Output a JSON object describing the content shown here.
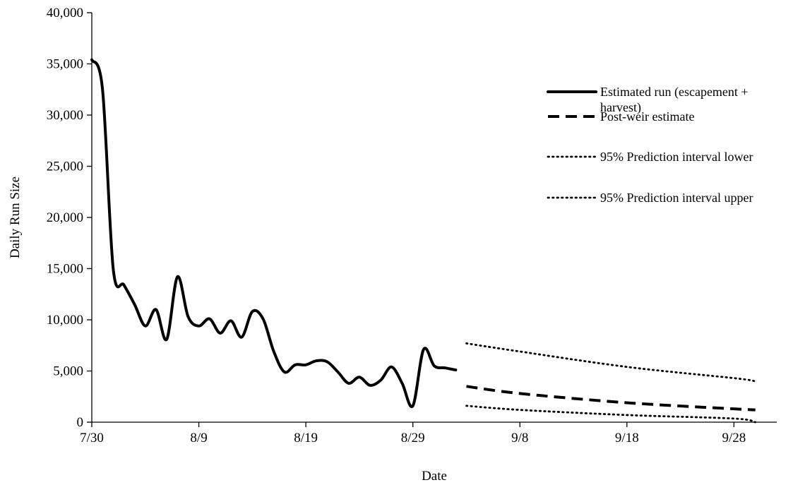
{
  "chart_data": {
    "type": "line",
    "title": "",
    "xlabel": "Date",
    "ylabel": "Daily Run Size",
    "x_axis": {
      "ticks": [
        "7/30",
        "8/9",
        "8/19",
        "8/29",
        "9/8",
        "9/18",
        "9/28"
      ],
      "range": [
        "7/30",
        "10/2"
      ]
    },
    "y_axis": {
      "range": [
        0,
        40000
      ],
      "ticks": [
        0,
        5000,
        10000,
        15000,
        20000,
        25000,
        30000,
        35000,
        40000
      ],
      "tick_labels": [
        "0",
        "5,000",
        "10,000",
        "15,000",
        "20,000",
        "25,000",
        "30,000",
        "35,000",
        "40,000"
      ]
    },
    "grid": false,
    "legend_position": "top-right",
    "series": [
      {
        "name": "Estimated run (escapement + harvest)",
        "style": "solid",
        "color": "#000000",
        "points": [
          [
            "7/30",
            35400
          ],
          [
            "7/31",
            32500
          ],
          [
            "8/1",
            15000
          ],
          [
            "8/2",
            13400
          ],
          [
            "8/3",
            11500
          ],
          [
            "8/4",
            9400
          ],
          [
            "8/5",
            11000
          ],
          [
            "8/6",
            8100
          ],
          [
            "8/7",
            14200
          ],
          [
            "8/8",
            10300
          ],
          [
            "8/9",
            9400
          ],
          [
            "8/10",
            10100
          ],
          [
            "8/11",
            8700
          ],
          [
            "8/12",
            9900
          ],
          [
            "8/13",
            8300
          ],
          [
            "8/14",
            10800
          ],
          [
            "8/15",
            10100
          ],
          [
            "8/16",
            6900
          ],
          [
            "8/17",
            4900
          ],
          [
            "8/18",
            5600
          ],
          [
            "8/19",
            5600
          ],
          [
            "8/20",
            6000
          ],
          [
            "8/21",
            5900
          ],
          [
            "8/22",
            4900
          ],
          [
            "8/23",
            3800
          ],
          [
            "8/24",
            4400
          ],
          [
            "8/25",
            3600
          ],
          [
            "8/26",
            4100
          ],
          [
            "8/27",
            5400
          ],
          [
            "8/28",
            3800
          ],
          [
            "8/29",
            1600
          ],
          [
            "8/30",
            7100
          ],
          [
            "8/31",
            5500
          ],
          [
            "9/1",
            5300
          ],
          [
            "9/2",
            5100
          ]
        ]
      },
      {
        "name": "Post-weir estimate",
        "style": "dashed",
        "color": "#000000",
        "points": [
          [
            "9/3",
            3500
          ],
          [
            "9/8",
            2800
          ],
          [
            "9/18",
            1900
          ],
          [
            "9/28",
            1300
          ],
          [
            "9/30",
            1200
          ]
        ]
      },
      {
        "name": "95% Prediction interval lower",
        "style": "dotted",
        "color": "#000000",
        "points": [
          [
            "9/3",
            1600
          ],
          [
            "9/8",
            1200
          ],
          [
            "9/18",
            700
          ],
          [
            "9/28",
            350
          ],
          [
            "9/30",
            0
          ]
        ]
      },
      {
        "name": "95% Prediction interval upper",
        "style": "dotted",
        "color": "#000000",
        "points": [
          [
            "9/3",
            7700
          ],
          [
            "9/8",
            6900
          ],
          [
            "9/18",
            5400
          ],
          [
            "9/28",
            4300
          ],
          [
            "9/30",
            4000
          ]
        ]
      }
    ]
  }
}
